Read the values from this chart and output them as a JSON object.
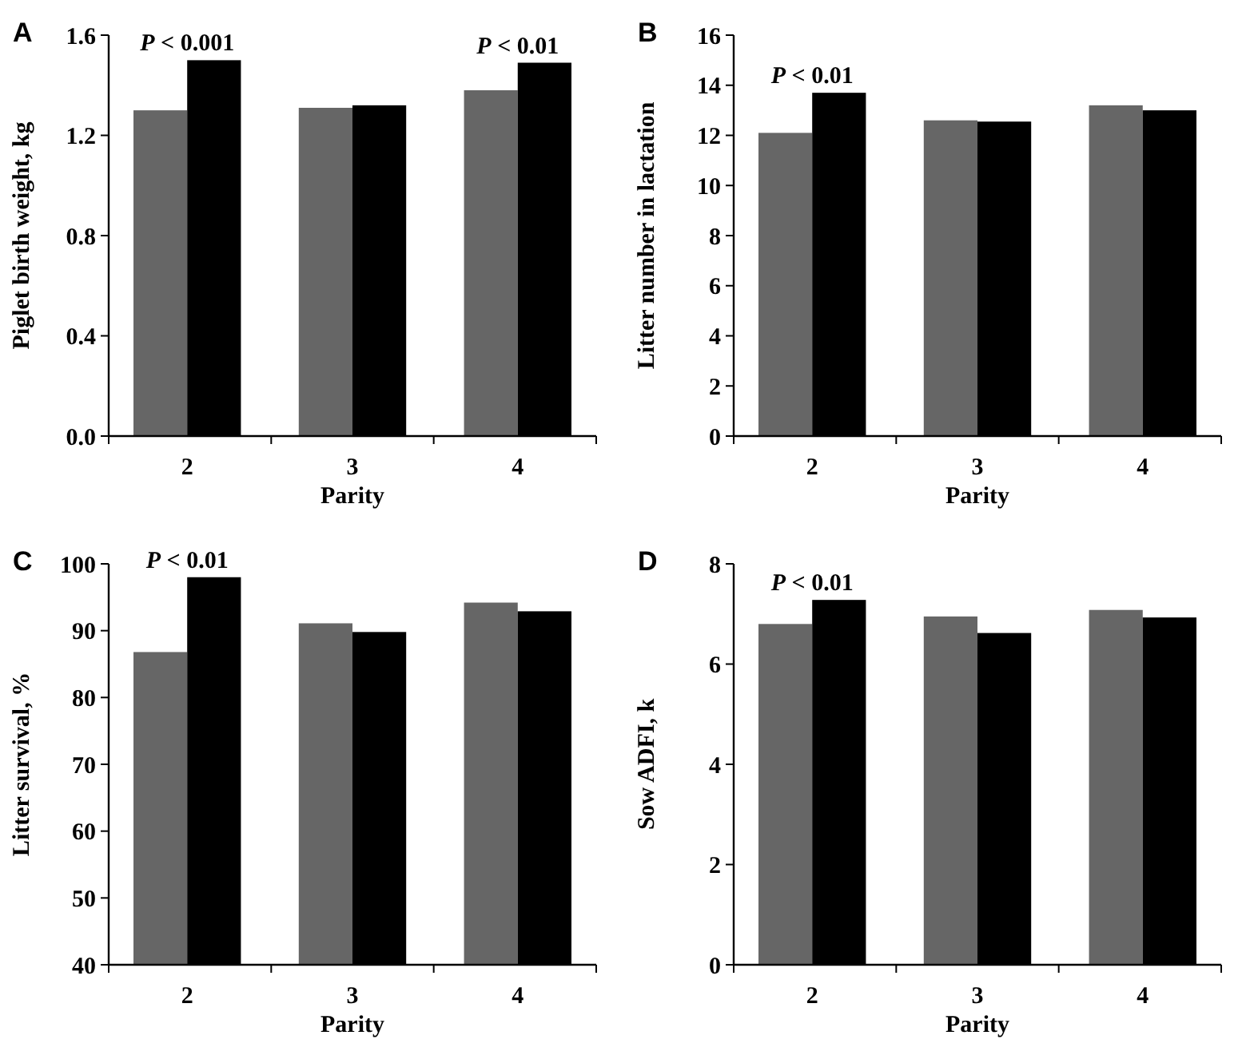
{
  "chart_data": [
    {
      "type": "bar",
      "title": "A",
      "xlabel": "Parity",
      "ylabel": "Piglet birth weight, kg",
      "categories": [
        "2",
        "3",
        "4"
      ],
      "series": [
        {
          "color": "#666666",
          "values": [
            1.3,
            1.31,
            1.38
          ]
        },
        {
          "color": "#000000",
          "values": [
            1.5,
            1.32,
            1.49
          ]
        }
      ],
      "ylim": [
        0,
        1.6
      ],
      "yticks": [
        {
          "value": 0,
          "label": "0.0"
        },
        0.4,
        0.8,
        1.2,
        1.6
      ],
      "annotations": [
        {
          "text": "P < 0.001",
          "x": "2",
          "y": 1.5
        },
        {
          "text": "P < 0.01",
          "x": "4",
          "y": 1.49
        }
      ]
    },
    {
      "type": "bar",
      "title": "B",
      "xlabel": "Parity",
      "ylabel": "Litter number in lactation",
      "categories": [
        "2",
        "3",
        "4"
      ],
      "series": [
        {
          "color": "#666666",
          "values": [
            12.1,
            12.6,
            13.2
          ]
        },
        {
          "color": "#000000",
          "values": [
            13.7,
            12.55,
            13.0
          ]
        }
      ],
      "ylim": [
        0,
        16
      ],
      "yticks": [
        0,
        2,
        4,
        6,
        8,
        10,
        12,
        14,
        16
      ],
      "annotations": [
        {
          "text": "P < 0.01",
          "x": "2",
          "y": 13.7
        }
      ]
    },
    {
      "type": "bar",
      "title": "C",
      "xlabel": "Parity",
      "ylabel": "Litter survival, %",
      "categories": [
        "2",
        "3",
        "4"
      ],
      "series": [
        {
          "color": "#666666",
          "values": [
            86.8,
            91.1,
            94.2
          ]
        },
        {
          "color": "#000000",
          "values": [
            98.0,
            89.8,
            92.9
          ]
        }
      ],
      "ylim": [
        40,
        100
      ],
      "yticks": [
        40,
        50,
        60,
        70,
        80,
        90,
        100
      ],
      "annotations": [
        {
          "text": "P < 0.01",
          "x": "2",
          "y": 98.0
        }
      ]
    },
    {
      "type": "bar",
      "title": "D",
      "xlabel": "Parity",
      "ylabel": "Sow ADFI, k",
      "categories": [
        "2",
        "3",
        "4"
      ],
      "series": [
        {
          "color": "#666666",
          "values": [
            6.8,
            6.95,
            7.08
          ]
        },
        {
          "color": "#000000",
          "values": [
            7.28,
            6.62,
            6.93
          ]
        }
      ],
      "ylim": [
        0,
        8
      ],
      "yticks": [
        0,
        2,
        4,
        6,
        8
      ],
      "annotations": [
        {
          "text": "P < 0.01",
          "x": "2",
          "y": 7.28
        }
      ]
    }
  ]
}
